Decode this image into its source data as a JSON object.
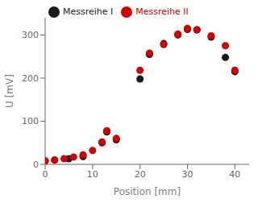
{
  "chart_data": {
    "type": "scatter",
    "x_label": "Position [mm]",
    "y_label": "U [mV]",
    "xlim": [
      0,
      43
    ],
    "ylim": [
      0,
      340
    ],
    "xticks": [
      0,
      10,
      20,
      30,
      40
    ],
    "yticks": [
      0,
      100,
      200,
      300
    ],
    "grid": false,
    "legend": "upper left",
    "series": [
      {
        "name": "Messreihe I",
        "color": "#1a1a1a",
        "marker": "circle",
        "x": [
          0,
          2,
          5,
          8,
          12,
          13,
          15,
          20,
          22,
          25,
          28,
          30,
          32,
          35,
          38,
          40
        ],
        "values": [
          8,
          10,
          13,
          18,
          50,
          75,
          57,
          198,
          255,
          280,
          300,
          313,
          312,
          295,
          248,
          215
        ]
      },
      {
        "name": "Messreihe II",
        "color": "#cc0000",
        "marker": "circle",
        "x": [
          0,
          2,
          4,
          6,
          8,
          10,
          12,
          13,
          15,
          20,
          22,
          25,
          28,
          30,
          32,
          35,
          38,
          40
        ],
        "values": [
          8,
          10,
          13,
          17,
          22,
          32,
          52,
          78,
          60,
          218,
          258,
          278,
          302,
          315,
          312,
          298,
          275,
          218
        ]
      }
    ]
  }
}
